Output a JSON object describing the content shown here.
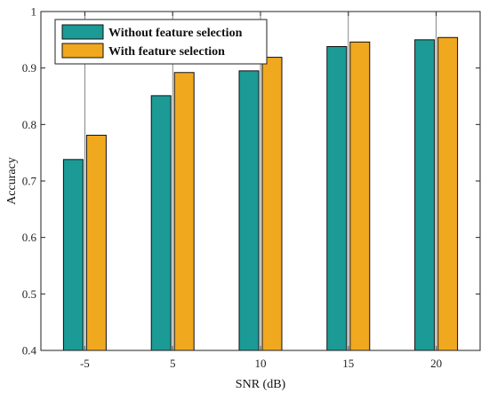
{
  "chart_data": {
    "type": "bar",
    "title": "",
    "xlabel": "SNR (dB)",
    "ylabel": "Accuracy",
    "categories": [
      "-5",
      "5",
      "10",
      "15",
      "20"
    ],
    "ylim": [
      0.4,
      1
    ],
    "yticks": [
      "0.4",
      "0.5",
      "0.6",
      "0.7",
      "0.8",
      "0.9",
      "1"
    ],
    "grid": "vertical",
    "legend_position": "top-left",
    "series": [
      {
        "name": "Without feature selection",
        "color": "#1b9a96",
        "values": [
          0.738,
          0.851,
          0.895,
          0.938,
          0.95
        ]
      },
      {
        "name": "With feature selection",
        "color": "#f0a81f",
        "values": [
          0.781,
          0.892,
          0.919,
          0.946,
          0.954
        ]
      }
    ]
  }
}
